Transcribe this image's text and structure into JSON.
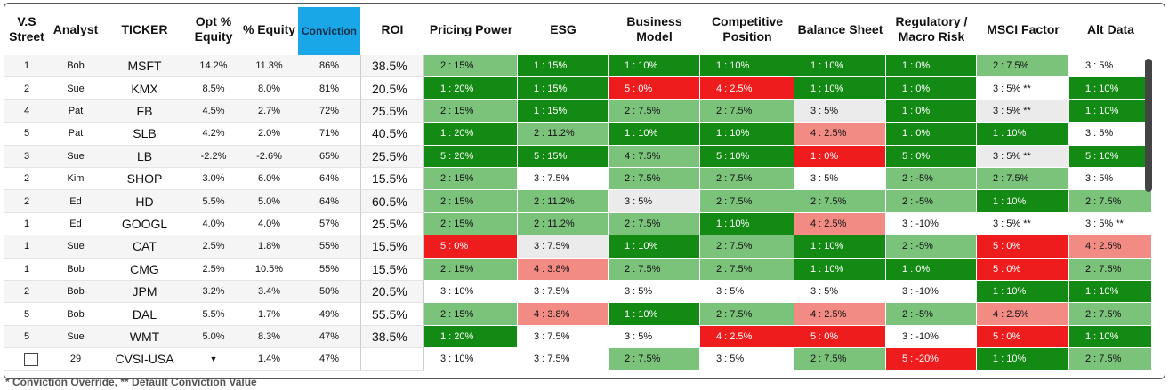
{
  "columns": {
    "vs_street": "V.S Street",
    "analyst": "Analyst",
    "ticker": "TICKER",
    "opt_equity": "Opt % Equity",
    "pct_equity": "% Equity",
    "conviction": "Conviction",
    "roi": "ROI",
    "pricing_power": "Pricing Power",
    "esg": "ESG",
    "business_model": "Business Model",
    "competitive_position": "Competitive Position",
    "balance_sheet": "Balance Sheet",
    "regulatory": "Regulatory / Macro Risk",
    "msci": "MSCI Factor",
    "alt_data": "Alt Data"
  },
  "colors": {
    "dark_green": "#138a13",
    "light_green": "#7bc27b",
    "red": "#ee1c1c",
    "pink": "#f28b84",
    "white": "#ffffff",
    "gray": "#ebebeb",
    "conviction_header": "#1aa7e8"
  },
  "rows": [
    {
      "vs": "1",
      "analyst": "Bob",
      "ticker": "MSFT",
      "opt": "14.2%",
      "pct": "11.3%",
      "conv": "86%",
      "roi": "38.5%",
      "m": [
        [
          "2 : 15%",
          "lg"
        ],
        [
          "1 : 15%",
          "dg"
        ],
        [
          "1 : 10%",
          "dg"
        ],
        [
          "1 : 10%",
          "dg"
        ],
        [
          "1 : 10%",
          "dg"
        ],
        [
          "1 : 0%",
          "dg"
        ],
        [
          "2 : 7.5%",
          "lg"
        ],
        [
          "3 : 5%",
          "wh"
        ]
      ]
    },
    {
      "vs": "2",
      "analyst": "Sue",
      "ticker": "KMX",
      "opt": "8.5%",
      "pct": "8.0%",
      "conv": "81%",
      "roi": "20.5%",
      "m": [
        [
          "1 : 20%",
          "dg"
        ],
        [
          "1 : 15%",
          "dg"
        ],
        [
          "5 : 0%",
          "rd"
        ],
        [
          "4 : 2.5%",
          "rd"
        ],
        [
          "1 : 10%",
          "dg"
        ],
        [
          "1 : 0%",
          "dg"
        ],
        [
          "3 : 5% **",
          "wh"
        ],
        [
          "1 : 10%",
          "dg"
        ]
      ]
    },
    {
      "vs": "4",
      "analyst": "Pat",
      "ticker": "FB",
      "opt": "4.5%",
      "pct": "2.7%",
      "conv": "72%",
      "roi": "25.5%",
      "m": [
        [
          "2 : 15%",
          "lg"
        ],
        [
          "1 : 15%",
          "dg"
        ],
        [
          "2 : 7.5%",
          "lg"
        ],
        [
          "2 : 7.5%",
          "lg"
        ],
        [
          "3 : 5%",
          "gy"
        ],
        [
          "1 : 0%",
          "dg"
        ],
        [
          "3 : 5% **",
          "gy"
        ],
        [
          "1 : 10%",
          "dg"
        ]
      ]
    },
    {
      "vs": "5",
      "analyst": "Pat",
      "ticker": "SLB",
      "opt": "4.2%",
      "pct": "2.0%",
      "conv": "71%",
      "roi": "40.5%",
      "m": [
        [
          "1 : 20%",
          "dg"
        ],
        [
          "2 : 11.2%",
          "lg"
        ],
        [
          "1 : 10%",
          "dg"
        ],
        [
          "1 : 10%",
          "dg"
        ],
        [
          "4 : 2.5%",
          "pk"
        ],
        [
          "1 : 0%",
          "dg"
        ],
        [
          "1 : 10%",
          "dg"
        ],
        [
          "3 : 5%",
          "wh"
        ]
      ]
    },
    {
      "vs": "3",
      "analyst": "Sue",
      "ticker": "LB",
      "opt": "-2.2%",
      "pct": "-2.6%",
      "conv": "65%",
      "roi": "25.5%",
      "m": [
        [
          "5 : 20%",
          "dg"
        ],
        [
          "5 : 15%",
          "dg"
        ],
        [
          "4 : 7.5%",
          "lg"
        ],
        [
          "5 : 10%",
          "dg"
        ],
        [
          "1 : 0%",
          "rd"
        ],
        [
          "5 : 0%",
          "dg"
        ],
        [
          "3 : 5% **",
          "gy"
        ],
        [
          "5 : 10%",
          "dg"
        ]
      ]
    },
    {
      "vs": "2",
      "analyst": "Kim",
      "ticker": "SHOP",
      "opt": "3.0%",
      "pct": "6.0%",
      "conv": "64%",
      "roi": "15.5%",
      "m": [
        [
          "2 : 15%",
          "lg"
        ],
        [
          "3 : 7.5%",
          "wh"
        ],
        [
          "2 : 7.5%",
          "lg"
        ],
        [
          "2 : 7.5%",
          "lg"
        ],
        [
          "3 : 5%",
          "wh"
        ],
        [
          "2 : -5%",
          "lg"
        ],
        [
          "2 : 7.5%",
          "lg"
        ],
        [
          "3 : 5%",
          "wh"
        ]
      ]
    },
    {
      "vs": "2",
      "analyst": "Ed",
      "ticker": "HD",
      "opt": "5.5%",
      "pct": "5.0%",
      "conv": "64%",
      "roi": "60.5%",
      "m": [
        [
          "2 : 15%",
          "lg"
        ],
        [
          "2 : 11.2%",
          "lg"
        ],
        [
          "3 : 5%",
          "gy"
        ],
        [
          "2 : 7.5%",
          "lg"
        ],
        [
          "2 : 7.5%",
          "lg"
        ],
        [
          "2 : -5%",
          "lg"
        ],
        [
          "1 : 10%",
          "dg"
        ],
        [
          "2 : 7.5%",
          "lg"
        ]
      ]
    },
    {
      "vs": "1",
      "analyst": "Ed",
      "ticker": "GOOGL",
      "opt": "4.0%",
      "pct": "4.0%",
      "conv": "57%",
      "roi": "25.5%",
      "m": [
        [
          "2 : 15%",
          "lg"
        ],
        [
          "2 : 11.2%",
          "lg"
        ],
        [
          "2 : 7.5%",
          "lg"
        ],
        [
          "1 : 10%",
          "dg"
        ],
        [
          "4 : 2.5%",
          "pk"
        ],
        [
          "3 : -10%",
          "wh"
        ],
        [
          "3 : 5% **",
          "wh"
        ],
        [
          "3 : 5% **",
          "wh"
        ]
      ]
    },
    {
      "vs": "1",
      "analyst": "Sue",
      "ticker": "CAT",
      "opt": "2.5%",
      "pct": "1.8%",
      "conv": "55%",
      "roi": "15.5%",
      "m": [
        [
          "5 : 0%",
          "rd"
        ],
        [
          "3 : 7.5%",
          "gy"
        ],
        [
          "1 : 10%",
          "dg"
        ],
        [
          "2 : 7.5%",
          "lg"
        ],
        [
          "1 : 10%",
          "dg"
        ],
        [
          "2 : -5%",
          "lg"
        ],
        [
          "5 : 0%",
          "rd"
        ],
        [
          "4 : 2.5%",
          "pk"
        ]
      ]
    },
    {
      "vs": "1",
      "analyst": "Bob",
      "ticker": "CMG",
      "opt": "2.5%",
      "pct": "10.5%",
      "conv": "55%",
      "roi": "15.5%",
      "m": [
        [
          "2 : 15%",
          "lg"
        ],
        [
          "4 : 3.8%",
          "pk"
        ],
        [
          "2 : 7.5%",
          "lg"
        ],
        [
          "2 : 7.5%",
          "lg"
        ],
        [
          "1 : 10%",
          "dg"
        ],
        [
          "1 : 0%",
          "dg"
        ],
        [
          "5 : 0%",
          "rd"
        ],
        [
          "2 : 7.5%",
          "lg"
        ]
      ]
    },
    {
      "vs": "2",
      "analyst": "Bob",
      "ticker": "JPM",
      "opt": "3.2%",
      "pct": "3.4%",
      "conv": "50%",
      "roi": "20.5%",
      "m": [
        [
          "3 : 10%",
          "wh"
        ],
        [
          "3 : 7.5%",
          "wh"
        ],
        [
          "3 : 5%",
          "wh"
        ],
        [
          "3 : 5%",
          "wh"
        ],
        [
          "3 : 5%",
          "wh"
        ],
        [
          "3 : -10%",
          "wh"
        ],
        [
          "1 : 10%",
          "dg"
        ],
        [
          "1 : 10%",
          "dg"
        ]
      ]
    },
    {
      "vs": "5",
      "analyst": "Bob",
      "ticker": "DAL",
      "opt": "5.5%",
      "pct": "1.7%",
      "conv": "49%",
      "roi": "55.5%",
      "m": [
        [
          "2 : 15%",
          "lg"
        ],
        [
          "4 : 3.8%",
          "pk"
        ],
        [
          "1 : 10%",
          "dg"
        ],
        [
          "2 : 7.5%",
          "lg"
        ],
        [
          "4 : 2.5%",
          "pk"
        ],
        [
          "2 : -5%",
          "lg"
        ],
        [
          "4 : 2.5%",
          "pk"
        ],
        [
          "2 : 7.5%",
          "lg"
        ]
      ]
    },
    {
      "vs": "5",
      "analyst": "Sue",
      "ticker": "WMT",
      "opt": "5.0%",
      "pct": "8.3%",
      "conv": "47%",
      "roi": "38.5%",
      "m": [
        [
          "1 : 20%",
          "dg"
        ],
        [
          "3 : 7.5%",
          "wh"
        ],
        [
          "3 : 5%",
          "wh"
        ],
        [
          "4 : 2.5%",
          "rd"
        ],
        [
          "5 : 0%",
          "rd"
        ],
        [
          "3 : -10%",
          "wh"
        ],
        [
          "5 : 0%",
          "rd"
        ],
        [
          "1 : 10%",
          "dg"
        ]
      ]
    },
    {
      "vs": "29",
      "analyst": "",
      "ticker": "CVSI-USA",
      "opt": "",
      "pct": "1.4%",
      "conv": "47%",
      "roi": "",
      "m": [
        [
          "3 : 10%",
          "wh"
        ],
        [
          "3 : 7.5%",
          "wh"
        ],
        [
          "2 : 7.5%",
          "lg"
        ],
        [
          "3 : 5%",
          "wh"
        ],
        [
          "2 : 7.5%",
          "lg"
        ],
        [
          "5 : -20%",
          "rd"
        ],
        [
          "1 : 10%",
          "dg"
        ],
        [
          "2 : 7.5%",
          "lg"
        ]
      ]
    }
  ],
  "footnote": "* Conviction Override, ** Default Conviction Value"
}
